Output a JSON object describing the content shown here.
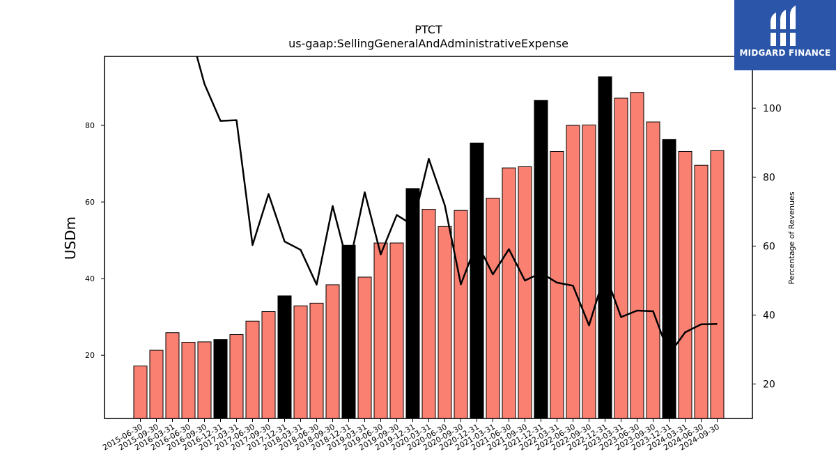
{
  "branding": {
    "logo_text": "MIDGARD FINANCE",
    "logo_color": "#2a55a8"
  },
  "chart_data": {
    "type": "bar",
    "title": "PTCT",
    "subtitle": "us-gaap:SellingGeneralAndAdministrativeExpense",
    "ylabel": "USDm",
    "y2label": "Percentage of Revenues",
    "ylim": [
      3.5,
      98
    ],
    "y2lim": [
      10,
      115
    ],
    "yticks": [
      20,
      40,
      60,
      80
    ],
    "y2ticks": [
      20,
      40,
      60,
      80,
      100
    ],
    "bar_color": "#fa8072",
    "highlight_color": "#000000",
    "line_color": "#000000",
    "categories": [
      "2015-06-30",
      "2015-09-30",
      "2016-03-31",
      "2016-06-30",
      "2016-09-30",
      "2016-12-31",
      "2017-03-31",
      "2017-06-30",
      "2017-09-30",
      "2017-12-31",
      "2018-03-31",
      "2018-06-30",
      "2018-09-30",
      "2018-12-31",
      "2019-03-31",
      "2019-06-30",
      "2019-09-30",
      "2019-12-31",
      "2020-03-31",
      "2020-06-30",
      "2020-09-30",
      "2020-12-31",
      "2021-03-31",
      "2021-06-30",
      "2021-09-30",
      "2021-12-31",
      "2022-03-31",
      "2022-06-30",
      "2022-09-30",
      "2022-12-31",
      "2023-03-31",
      "2023-06-30",
      "2023-09-30",
      "2023-12-31",
      "2024-03-31",
      "2024-06-30",
      "2024-09-30"
    ],
    "highlight_categories": [
      "2016-12-31",
      "2017-12-31",
      "2018-12-31",
      "2019-12-31",
      "2020-12-31",
      "2021-12-31",
      "2022-12-31",
      "2023-12-31"
    ],
    "series": [
      {
        "name": "USDm",
        "axis": "left",
        "values": [
          17.2,
          21.3,
          25.9,
          23.4,
          23.5,
          24.1,
          25.4,
          28.9,
          31.4,
          35.5,
          32.9,
          33.6,
          38.4,
          48.7,
          40.4,
          49.3,
          49.3,
          63.5,
          58.1,
          53.6,
          57.8,
          75.4,
          61.0,
          68.9,
          69.2,
          86.5,
          73.2,
          80.0,
          80.1,
          92.7,
          87.1,
          88.6,
          80.9,
          76.3,
          73.2,
          69.6,
          73.4
        ]
      },
      {
        "name": "Percentage of Revenues",
        "axis": "right",
        "values": [
          null,
          null,
          null,
          null,
          107,
          96.3,
          96.5,
          60.3,
          75.1,
          61.3,
          58.9,
          48.8,
          71.6,
          53.7,
          75.6,
          57.6,
          69.0,
          66.1,
          85.3,
          71.8,
          48.9,
          61.0,
          51.8,
          59.1,
          50.0,
          52.2,
          49.4,
          48.5,
          37.0,
          52.1,
          39.4,
          41.3,
          41.1,
          28.6,
          35.0,
          37.3,
          37.4
        ],
        "offscale_start": {
          "index": 3.35,
          "value": 118
        }
      }
    ]
  }
}
